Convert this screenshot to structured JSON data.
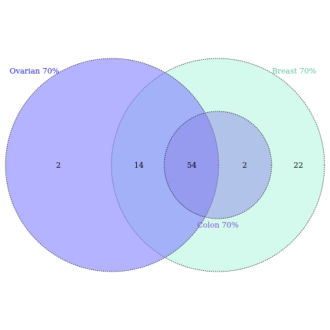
{
  "sets": [
    {
      "name": "Ovarian 70%",
      "label_color": "#1a1acc",
      "fill": "#8080ff",
      "fill_opacity": 0.6
    },
    {
      "name": "Breast 70%",
      "label_color": "#5fbf9f",
      "fill": "#c2f7e6",
      "fill_opacity": 0.65
    },
    {
      "name": "Colon 70%",
      "label_color": "#7a4fd1",
      "fill": "#8a80e6",
      "fill_opacity": 0.45
    }
  ],
  "regions": [
    {
      "sets": [
        "Ovarian 70%"
      ],
      "count": "2"
    },
    {
      "sets": [
        "Ovarian 70%",
        "Breast 70%"
      ],
      "count": "14"
    },
    {
      "sets": [
        "Ovarian 70%",
        "Breast 70%",
        "Colon 70%"
      ],
      "count": "54"
    },
    {
      "sets": [
        "Breast 70%",
        "Colon 70%"
      ],
      "count": "2"
    },
    {
      "sets": [
        "Breast 70%"
      ],
      "count": "22"
    }
  ]
}
